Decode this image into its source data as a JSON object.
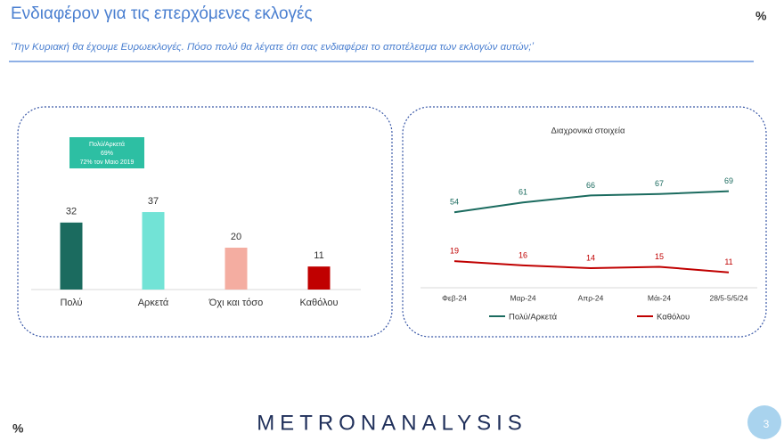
{
  "title": "Ενδιαφέρον για τις επερχόμενες εκλογές",
  "subtitle": "‘Την Κυριακή θα έχουμε Ευρωεκλογές. Πόσο πολύ θα λέγατε ότι σας ενδιαφέρει το αποτέλεσμα των εκλογών αυτών;’",
  "percent_mark": "%",
  "logo": "METRONANALYSIS",
  "page_number": "3",
  "chart_data": [
    {
      "type": "bar",
      "categories": [
        "Πολύ",
        "Αρκετά",
        "Όχι και τόσο",
        "Καθόλου"
      ],
      "values": [
        32,
        37,
        20,
        11
      ],
      "colors": [
        "#1b6b5f",
        "#72e3d6",
        "#f4ada1",
        "#c00000"
      ],
      "annotation": [
        "Πολύ/Αρκετά",
        "69%",
        "72% τον Μαιο 2019"
      ]
    },
    {
      "type": "line",
      "title": "Διαχρονικά στοιχεία",
      "categories": [
        "Φεβ-24",
        "Μαρ-24",
        "Απρ-24",
        "Μάι-24",
        "28/5-5/5/24"
      ],
      "series": [
        {
          "name": "Πολύ/Αρκετά",
          "color": "#1b6b5f",
          "values": [
            54,
            61,
            66,
            67,
            69
          ]
        },
        {
          "name": "Καθόλου",
          "color": "#c00000",
          "values": [
            19,
            16,
            14,
            15,
            11
          ]
        }
      ]
    }
  ]
}
